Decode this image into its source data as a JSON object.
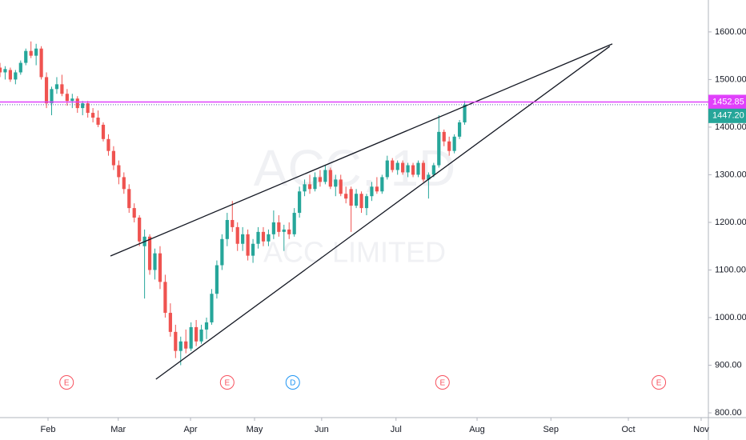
{
  "chart_data": {
    "type": "candlestick",
    "watermark": {
      "symbol": "ACC, 1D",
      "name": "ACC LIMITED"
    },
    "up_color": "#26a69a",
    "down_color": "#ef5350",
    "xlim": [
      0,
      137.2
    ],
    "ylim": [
      790,
      1667
    ],
    "yticks": [
      {
        "value": 800,
        "label": "800.00"
      },
      {
        "value": 900,
        "label": "900.00"
      },
      {
        "value": 1000,
        "label": "1000.00"
      },
      {
        "value": 1100,
        "label": "1100.00"
      },
      {
        "value": 1200,
        "label": "1200.00"
      },
      {
        "value": 1300,
        "label": "1300.00"
      },
      {
        "value": 1400,
        "label": "1400.00"
      },
      {
        "value": 1500,
        "label": "1500.00"
      },
      {
        "value": 1600,
        "label": "1600.00"
      }
    ],
    "xticks": [
      {
        "value": 9.3,
        "label": "Feb"
      },
      {
        "value": 22.9,
        "label": "Mar"
      },
      {
        "value": 36.9,
        "label": "Apr"
      },
      {
        "value": 49.3,
        "label": "May"
      },
      {
        "value": 62.3,
        "label": "Jun"
      },
      {
        "value": 76.7,
        "label": "Jul"
      },
      {
        "value": 92.4,
        "label": "Aug"
      },
      {
        "value": 106.7,
        "label": "Sep"
      },
      {
        "value": 121.7,
        "label": "Oct"
      },
      {
        "value": 135.8,
        "label": "Nov"
      }
    ],
    "x": [
      0,
      1,
      2,
      3,
      4,
      5,
      6,
      7,
      8,
      9,
      10,
      11,
      12,
      13,
      14,
      15,
      16,
      17,
      18,
      19,
      20,
      21,
      22,
      23,
      24,
      25,
      26,
      27,
      28,
      29,
      30,
      31,
      32,
      33,
      34,
      35,
      36,
      37,
      38,
      39,
      40,
      41,
      42,
      43,
      44,
      45,
      46,
      47,
      48,
      49,
      50,
      51,
      52,
      53,
      54,
      55,
      56,
      57,
      58,
      59,
      60,
      61,
      62,
      63,
      64,
      65,
      66,
      67,
      68,
      69,
      70,
      71,
      72,
      73,
      74,
      75,
      76,
      77,
      78,
      79,
      80,
      81,
      82,
      83,
      84,
      85,
      86,
      87,
      88,
      89,
      90
    ],
    "candles": [
      [
        1525,
        1535,
        1505,
        1515
      ],
      [
        1515,
        1528,
        1500,
        1522
      ],
      [
        1520,
        1525,
        1495,
        1500
      ],
      [
        1500,
        1520,
        1490,
        1515
      ],
      [
        1515,
        1540,
        1510,
        1535
      ],
      [
        1535,
        1565,
        1530,
        1560
      ],
      [
        1560,
        1580,
        1545,
        1550
      ],
      [
        1550,
        1575,
        1530,
        1565
      ],
      [
        1565,
        1570,
        1500,
        1505
      ],
      [
        1505,
        1515,
        1440,
        1450
      ],
      [
        1450,
        1485,
        1425,
        1480
      ],
      [
        1480,
        1505,
        1470,
        1490
      ],
      [
        1490,
        1510,
        1465,
        1470
      ],
      [
        1470,
        1480,
        1445,
        1455
      ],
      [
        1455,
        1470,
        1440,
        1460
      ],
      [
        1460,
        1465,
        1430,
        1440
      ],
      [
        1440,
        1455,
        1425,
        1450
      ],
      [
        1450,
        1455,
        1420,
        1430
      ],
      [
        1430,
        1440,
        1410,
        1420
      ],
      [
        1420,
        1435,
        1400,
        1405
      ],
      [
        1405,
        1410,
        1370,
        1375
      ],
      [
        1375,
        1385,
        1340,
        1350
      ],
      [
        1350,
        1360,
        1310,
        1320
      ],
      [
        1320,
        1330,
        1280,
        1295
      ],
      [
        1295,
        1305,
        1260,
        1270
      ],
      [
        1270,
        1280,
        1220,
        1230
      ],
      [
        1230,
        1240,
        1200,
        1210
      ],
      [
        1210,
        1215,
        1150,
        1160
      ],
      [
        1150,
        1185,
        1040,
        1170
      ],
      [
        1170,
        1175,
        1090,
        1100
      ],
      [
        1100,
        1145,
        1080,
        1135
      ],
      [
        1135,
        1150,
        1060,
        1075
      ],
      [
        1075,
        1090,
        1000,
        1010
      ],
      [
        1010,
        1030,
        960,
        970
      ],
      [
        970,
        985,
        915,
        930
      ],
      [
        930,
        960,
        900,
        950
      ],
      [
        950,
        975,
        925,
        935
      ],
      [
        935,
        990,
        930,
        980
      ],
      [
        980,
        995,
        940,
        950
      ],
      [
        950,
        985,
        945,
        975
      ],
      [
        975,
        1000,
        955,
        990
      ],
      [
        990,
        1060,
        985,
        1050
      ],
      [
        1050,
        1120,
        1040,
        1110
      ],
      [
        1110,
        1175,
        1100,
        1165
      ],
      [
        1165,
        1220,
        1150,
        1205
      ],
      [
        1205,
        1245,
        1180,
        1190
      ],
      [
        1190,
        1200,
        1140,
        1155
      ],
      [
        1155,
        1190,
        1140,
        1175
      ],
      [
        1175,
        1185,
        1120,
        1130
      ],
      [
        1130,
        1165,
        1115,
        1155
      ],
      [
        1155,
        1190,
        1145,
        1180
      ],
      [
        1180,
        1190,
        1150,
        1160
      ],
      [
        1160,
        1185,
        1150,
        1175
      ],
      [
        1175,
        1225,
        1165,
        1200
      ],
      [
        1200,
        1215,
        1170,
        1180
      ],
      [
        1180,
        1195,
        1140,
        1185
      ],
      [
        1185,
        1200,
        1165,
        1175
      ],
      [
        1175,
        1230,
        1170,
        1220
      ],
      [
        1220,
        1275,
        1210,
        1265
      ],
      [
        1265,
        1290,
        1255,
        1280
      ],
      [
        1280,
        1300,
        1260,
        1270
      ],
      [
        1270,
        1305,
        1265,
        1295
      ],
      [
        1295,
        1310,
        1275,
        1285
      ],
      [
        1285,
        1320,
        1280,
        1310
      ],
      [
        1310,
        1315,
        1270,
        1275
      ],
      [
        1275,
        1300,
        1255,
        1290
      ],
      [
        1290,
        1300,
        1255,
        1260
      ],
      [
        1260,
        1275,
        1240,
        1250
      ],
      [
        1270,
        1275,
        1180,
        1235
      ],
      [
        1235,
        1270,
        1230,
        1260
      ],
      [
        1260,
        1265,
        1220,
        1230
      ],
      [
        1230,
        1260,
        1215,
        1255
      ],
      [
        1255,
        1285,
        1245,
        1275
      ],
      [
        1275,
        1295,
        1260,
        1265
      ],
      [
        1265,
        1300,
        1260,
        1295
      ],
      [
        1295,
        1340,
        1290,
        1330
      ],
      [
        1330,
        1335,
        1305,
        1310
      ],
      [
        1310,
        1330,
        1300,
        1325
      ],
      [
        1325,
        1330,
        1300,
        1305
      ],
      [
        1305,
        1325,
        1295,
        1320
      ],
      [
        1320,
        1325,
        1295,
        1300
      ],
      [
        1300,
        1330,
        1295,
        1325
      ],
      [
        1325,
        1330,
        1285,
        1290
      ],
      [
        1290,
        1305,
        1250,
        1300
      ],
      [
        1300,
        1325,
        1295,
        1320
      ],
      [
        1320,
        1425,
        1315,
        1390
      ],
      [
        1390,
        1395,
        1360,
        1370
      ],
      [
        1370,
        1380,
        1340,
        1350
      ],
      [
        1350,
        1385,
        1345,
        1380
      ],
      [
        1380,
        1415,
        1375,
        1410
      ],
      [
        1410,
        1455,
        1405,
        1447.2
      ]
    ],
    "alert_line": {
      "value": 1452.85,
      "label": "1452.85",
      "color": "#e040fb"
    },
    "last_price": {
      "value": 1447.2,
      "label": "1447.20",
      "color": "#26a69a"
    },
    "trendlines": [
      {
        "x": [
          21.4,
          118.6
        ],
        "y": [
          1129.4,
          1574.8
        ]
      },
      {
        "x": [
          30.2,
          118.1
        ],
        "y": [
          870.6,
          1569.7
        ]
      }
    ],
    "events": [
      {
        "x": 12.9,
        "label": "E",
        "color": "#f7525f"
      },
      {
        "x": 44.0,
        "label": "E",
        "color": "#f7525f"
      },
      {
        "x": 56.7,
        "label": "D",
        "color": "#2196f3"
      },
      {
        "x": 85.7,
        "label": "E",
        "color": "#f7525f"
      },
      {
        "x": 127.6,
        "label": "E",
        "color": "#f7525f"
      }
    ]
  }
}
